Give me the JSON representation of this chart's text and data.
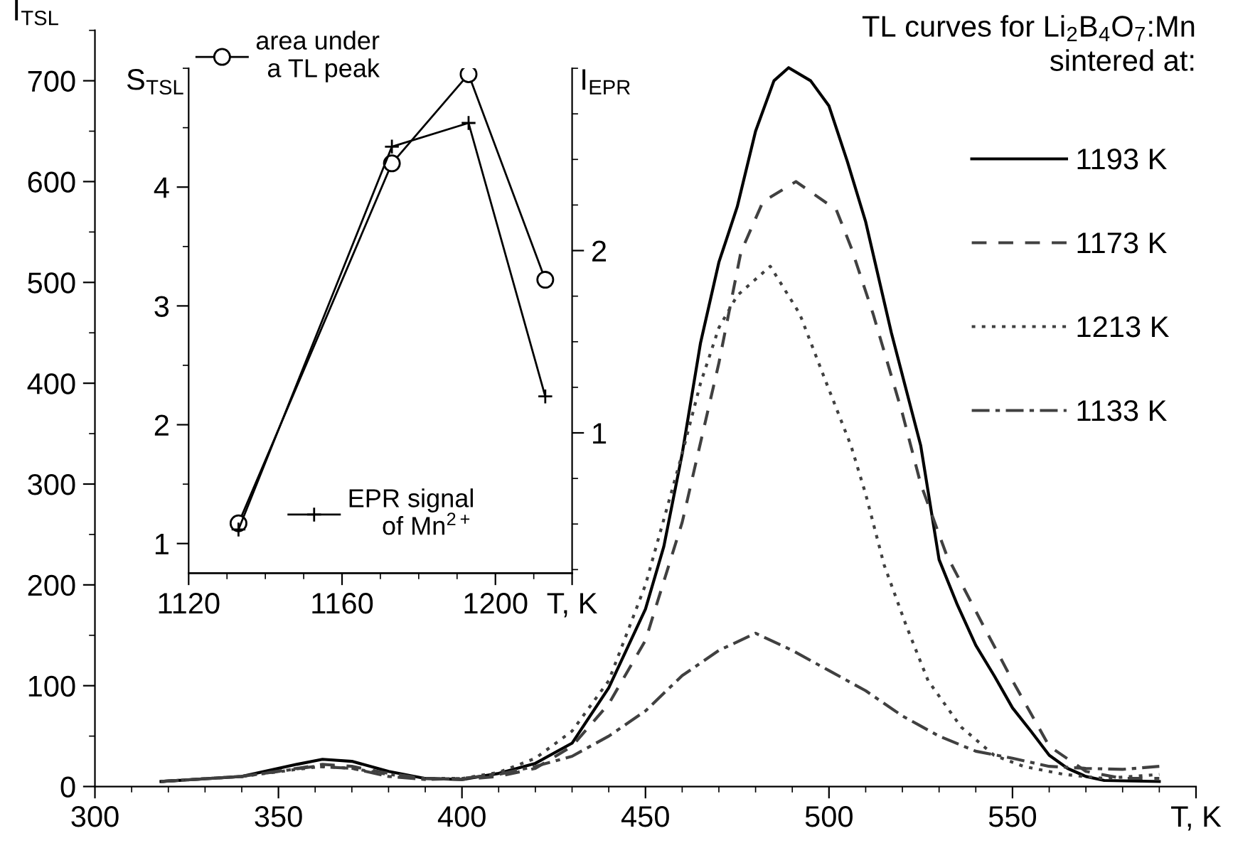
{
  "chart_data": [
    {
      "type": "line",
      "ylabel": "I$_{TSL}$",
      "legend_title": "TL curves for Li$_{2}$B$_{4}$O$_{7}$:Mn\nsintered at:",
      "legend": "top right",
      "xlim": [
        300,
        600
      ],
      "xticks": [
        300,
        350,
        400,
        450,
        500,
        550,
        {
          "value": 600,
          "label": "T, K"
        }
      ],
      "ylim": [
        0,
        750
      ],
      "yticks": [
        0,
        100,
        200,
        300,
        400,
        500,
        600,
        700
      ],
      "series": [
        {
          "name": "1193 K",
          "color": "#000000",
          "line_style": "solid",
          "x": [
            318,
            340,
            355,
            362,
            370,
            380,
            390,
            400,
            410,
            420,
            430,
            440,
            450,
            455,
            460,
            465,
            470,
            475,
            480,
            485,
            489,
            495,
            500,
            505,
            510,
            517,
            525,
            530,
            535,
            540,
            545,
            550,
            555,
            560,
            565,
            570,
            575,
            590
          ],
          "values": [
            5,
            10,
            22,
            27,
            25,
            15,
            8,
            7,
            13,
            23,
            43,
            98,
            176,
            238,
            330,
            440,
            520,
            575,
            650,
            700,
            713,
            700,
            675,
            620,
            560,
            450,
            338,
            225,
            180,
            140,
            110,
            78,
            55,
            31,
            18,
            10,
            6,
            5
          ]
        },
        {
          "name": "1173 K",
          "color": "#404040",
          "line_style": "dashed",
          "x": [
            318,
            340,
            355,
            362,
            370,
            380,
            390,
            400,
            410,
            420,
            430,
            440,
            450,
            460,
            470,
            476,
            482,
            491,
            502,
            506,
            512,
            520,
            525,
            532,
            542,
            550,
            560,
            570,
            580,
            590
          ],
          "values": [
            5,
            10,
            18,
            22,
            20,
            13,
            8,
            7,
            10,
            18,
            40,
            82,
            145,
            262,
            420,
            530,
            580,
            600,
            572,
            535,
            469,
            370,
            300,
            230,
            160,
            105,
            40,
            15,
            8,
            8
          ]
        },
        {
          "name": "1213 K",
          "color": "#404040",
          "line_style": "dotted",
          "x": [
            318,
            340,
            355,
            362,
            370,
            380,
            390,
            400,
            410,
            420,
            430,
            440,
            450,
            460,
            465,
            470,
            475,
            484,
            492,
            499,
            506,
            510,
            515,
            521,
            527,
            536,
            545,
            553,
            564,
            575,
            590
          ],
          "values": [
            5,
            10,
            17,
            20,
            18,
            12,
            8,
            8,
            14,
            28,
            55,
            105,
            200,
            330,
            400,
            455,
            487,
            516,
            469,
            403,
            338,
            290,
            220,
            160,
            105,
            59,
            31,
            20,
            12,
            8,
            12
          ]
        },
        {
          "name": "1133 K",
          "color": "#404040",
          "line_style": "dashdot",
          "x": [
            318,
            340,
            360,
            370,
            380,
            390,
            400,
            410,
            420,
            430,
            440,
            450,
            460,
            470,
            480,
            490,
            500,
            510,
            520,
            530,
            540,
            550,
            560,
            570,
            580,
            590
          ],
          "values": [
            5,
            10,
            20,
            18,
            10,
            7,
            8,
            12,
            20,
            30,
            50,
            75,
            110,
            135,
            152,
            135,
            115,
            95,
            70,
            50,
            35,
            28,
            20,
            18,
            17,
            20
          ]
        }
      ]
    },
    {
      "type": "line",
      "ylabel": "S$_{TSL}$",
      "y2label": "I$_{EPR}$",
      "legend": "top left",
      "xlim": [
        1120,
        1220
      ],
      "xticks": [
        1120,
        1160,
        1200,
        {
          "value": 1220,
          "label": "T, K"
        }
      ],
      "ylim": [
        0.75,
        5
      ],
      "yticks": [
        1,
        2,
        3,
        4
      ],
      "y2lim": [
        0.23,
        3
      ],
      "y2ticks": [
        1,
        2
      ],
      "series": [
        {
          "name": "area under\na TL peak",
          "color": "#000000",
          "marker": "circle",
          "x": [
            1133,
            1173,
            1193,
            1213
          ],
          "values": [
            1.17,
            4.2,
            4.95,
            3.22
          ]
        },
        {
          "name": "EPR signal\nof Mn$^{2+}$",
          "color": "#000000",
          "marker": "cross",
          "axis": "y2",
          "x": [
            1133,
            1173,
            1193,
            1213
          ],
          "values": [
            0.47,
            2.57,
            2.7,
            1.2
          ]
        }
      ]
    }
  ]
}
